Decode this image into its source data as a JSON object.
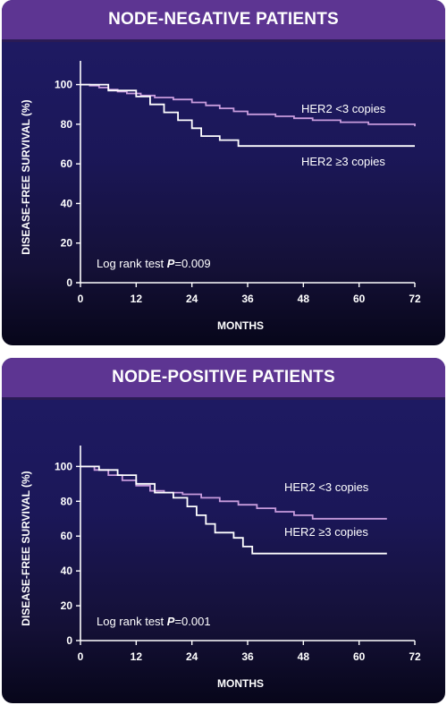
{
  "colors": {
    "header_bg": "#5d3592",
    "plot_bg_top": "#1f1b66",
    "plot_bg_bottom": "#07061a",
    "series_low": "#c79bdc",
    "series_high": "#ffffff",
    "axis": "#ffffff"
  },
  "chart_data": [
    {
      "type": "line",
      "title": "NODE-NEGATIVE PATIENTS",
      "xlabel": "MONTHS",
      "ylabel": "DISEASE-FREE SURVIVAL (%)",
      "xlim": [
        0,
        72
      ],
      "ylim": [
        0,
        100
      ],
      "xticks": [
        0,
        12,
        24,
        36,
        48,
        60,
        72
      ],
      "yticks": [
        0,
        20,
        40,
        60,
        80,
        100
      ],
      "annotation": {
        "prefix": "Log rank test ",
        "italic": "P",
        "suffix": "=0.009"
      },
      "series": [
        {
          "name": "HER2 <3 copies",
          "color": "#c79bdc",
          "step": true,
          "points": [
            [
              0,
              100
            ],
            [
              2,
              99.5
            ],
            [
              4,
              98.5
            ],
            [
              6,
              97.5
            ],
            [
              8,
              96.5
            ],
            [
              10,
              95.5
            ],
            [
              13,
              94.5
            ],
            [
              16,
              93.5
            ],
            [
              20,
              92.5
            ],
            [
              24,
              91
            ],
            [
              27,
              89.5
            ],
            [
              30,
              88
            ],
            [
              33,
              86.5
            ],
            [
              36,
              85
            ],
            [
              42,
              84
            ],
            [
              46,
              83
            ],
            [
              50,
              82
            ],
            [
              56,
              81
            ],
            [
              62,
              80
            ],
            [
              72,
              79
            ]
          ]
        },
        {
          "name": "HER2 ≥3 copies",
          "color": "#ffffff",
          "step": true,
          "points": [
            [
              0,
              100
            ],
            [
              6,
              97
            ],
            [
              12,
              94
            ],
            [
              15,
              90
            ],
            [
              18,
              86
            ],
            [
              21,
              82
            ],
            [
              24,
              78
            ],
            [
              26,
              74
            ],
            [
              28,
              74
            ],
            [
              30,
              72
            ],
            [
              34,
              69
            ],
            [
              72,
              69
            ]
          ]
        }
      ]
    },
    {
      "type": "line",
      "title": "NODE-POSITIVE PATIENTS",
      "xlabel": "MONTHS",
      "ylabel": "DISEASE-FREE SURVIVAL (%)",
      "xlim": [
        0,
        72
      ],
      "ylim": [
        0,
        100
      ],
      "xticks": [
        0,
        12,
        24,
        36,
        48,
        60,
        72
      ],
      "yticks": [
        0,
        20,
        40,
        60,
        80,
        100
      ],
      "annotation": {
        "prefix": "Log rank test ",
        "italic": "P",
        "suffix": "=0.001"
      },
      "series": [
        {
          "name": "HER2 <3 copies",
          "color": "#c79bdc",
          "step": true,
          "points": [
            [
              0,
              100
            ],
            [
              3,
              98
            ],
            [
              6,
              95
            ],
            [
              9,
              92
            ],
            [
              12,
              89
            ],
            [
              15,
              86
            ],
            [
              18,
              85
            ],
            [
              22,
              84
            ],
            [
              26,
              82
            ],
            [
              30,
              80
            ],
            [
              34,
              78
            ],
            [
              38,
              76
            ],
            [
              42,
              74
            ],
            [
              46,
              72
            ],
            [
              50,
              70
            ],
            [
              66,
              70
            ]
          ]
        },
        {
          "name": "HER2 ≥3 copies",
          "color": "#ffffff",
          "step": true,
          "points": [
            [
              0,
              100
            ],
            [
              4,
              98
            ],
            [
              8,
              95
            ],
            [
              12,
              90
            ],
            [
              16,
              85
            ],
            [
              20,
              82
            ],
            [
              23,
              77
            ],
            [
              25,
              72
            ],
            [
              27,
              67
            ],
            [
              29,
              62
            ],
            [
              33,
              59
            ],
            [
              35,
              54
            ],
            [
              37,
              50
            ],
            [
              66,
              50
            ]
          ]
        }
      ]
    }
  ]
}
